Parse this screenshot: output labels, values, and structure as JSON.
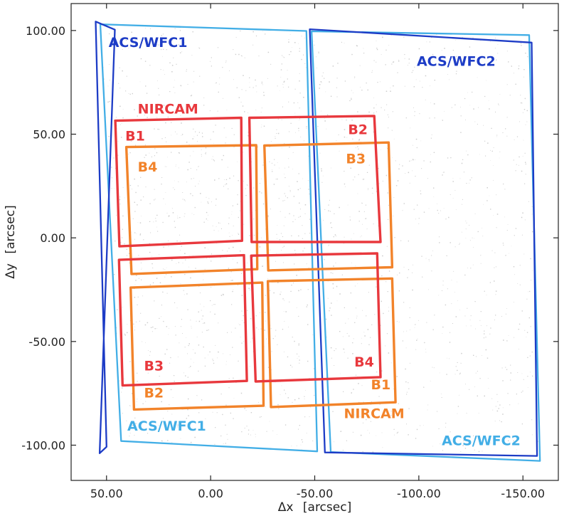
{
  "axes": {
    "xlabel_symbol": "Δx",
    "xlabel_unit": "[arcsec]",
    "ylabel_symbol": "Δy",
    "ylabel_unit": "[arcsec]",
    "xlim": [
      67,
      -167
    ],
    "ylim": [
      -117,
      113
    ],
    "x_ticks": [
      {
        "value": 50,
        "label": "50.00"
      },
      {
        "value": 0,
        "label": "0.00"
      },
      {
        "value": -50,
        "label": "-50.00"
      },
      {
        "value": -100,
        "label": "-100.00"
      },
      {
        "value": -150,
        "label": "-150.00"
      }
    ],
    "y_ticks": [
      {
        "value": 100,
        "label": "100.00"
      },
      {
        "value": 50,
        "label": "50.00"
      },
      {
        "value": 0,
        "label": "0.00"
      },
      {
        "value": -50,
        "label": "-50.00"
      },
      {
        "value": -100,
        "label": "-100.00"
      }
    ]
  },
  "colors": {
    "acs_dark": "#1d3cc6",
    "acs_light": "#42aee6",
    "nircam_red": "#e8383d",
    "nircam_orange": "#f2832a",
    "stars": "#c4c4c4",
    "axis": "#222222"
  },
  "footprints": [
    {
      "id": "acs-wfc1-dark",
      "group": "acs_dark",
      "corners": [
        [
          55.2,
          104.3
        ],
        [
          46.0,
          100.4
        ],
        [
          53.3,
          -103.9
        ],
        [
          50.0,
          -100.8
        ]
      ]
    },
    {
      "id": "acs-wfc2-dark",
      "group": "acs_dark",
      "corners": [
        [
          -47.6,
          100.6
        ],
        [
          -154.2,
          94.2
        ],
        [
          -156.8,
          -105.2
        ],
        [
          -54.9,
          -103.5
        ]
      ]
    },
    {
      "id": "acs-wfc1-light",
      "group": "acs_light",
      "corners": [
        [
          53.0,
          103.0
        ],
        [
          -46.0,
          99.8
        ],
        [
          -51.2,
          -103.0
        ],
        [
          43.0,
          -98.0
        ]
      ]
    },
    {
      "id": "acs-wfc2-light",
      "group": "acs_light",
      "corners": [
        [
          -48.5,
          99.6
        ],
        [
          -153.0,
          97.8
        ],
        [
          -158.2,
          -107.6
        ],
        [
          -57.7,
          -103.3
        ]
      ]
    },
    {
      "id": "nircam-a-b1",
      "group": "nircam_red",
      "corners": [
        [
          45.8,
          56.5
        ],
        [
          -14.7,
          57.9
        ],
        [
          -15.1,
          -1.4
        ],
        [
          43.8,
          -4.1
        ]
      ]
    },
    {
      "id": "nircam-a-b4",
      "group": "nircam_orange",
      "corners": [
        [
          40.5,
          43.8
        ],
        [
          -21.9,
          44.7
        ],
        [
          -22.4,
          -15.1
        ],
        [
          38.0,
          -17.4
        ]
      ]
    },
    {
      "id": "nircam-a-b3",
      "group": "nircam_red",
      "corners": [
        [
          44.0,
          -10.6
        ],
        [
          -16.0,
          -8.4
        ],
        [
          -17.4,
          -69.0
        ],
        [
          42.3,
          -71.2
        ]
      ]
    },
    {
      "id": "nircam-a-b2",
      "group": "nircam_orange",
      "corners": [
        [
          38.4,
          -24.0
        ],
        [
          -24.8,
          -21.6
        ],
        [
          -25.4,
          -81.0
        ],
        [
          36.8,
          -82.8
        ]
      ]
    },
    {
      "id": "nircam-b-b2",
      "group": "nircam_red",
      "corners": [
        [
          -18.6,
          57.9
        ],
        [
          -78.6,
          58.8
        ],
        [
          -81.6,
          -2.0
        ],
        [
          -19.7,
          -2.0
        ]
      ]
    },
    {
      "id": "nircam-b-b3",
      "group": "nircam_orange",
      "corners": [
        [
          -25.8,
          44.5
        ],
        [
          -85.5,
          46.0
        ],
        [
          -87.2,
          -14.2
        ],
        [
          -27.7,
          -15.7
        ]
      ]
    },
    {
      "id": "nircam-b-b4",
      "group": "nircam_red",
      "corners": [
        [
          -19.5,
          -8.6
        ],
        [
          -80.0,
          -7.5
        ],
        [
          -81.6,
          -67.2
        ],
        [
          -21.6,
          -69.3
        ]
      ]
    },
    {
      "id": "nircam-b-b1",
      "group": "nircam_orange",
      "corners": [
        [
          -27.5,
          -20.9
        ],
        [
          -87.2,
          -19.6
        ],
        [
          -88.8,
          -79.3
        ],
        [
          -29.0,
          -81.6
        ]
      ]
    }
  ],
  "labels": [
    {
      "id": "label-acs-wfc1-top",
      "text": "ACS/WFC1",
      "group": "acs_dark",
      "x": 49,
      "y": 92
    },
    {
      "id": "label-acs-wfc2-top",
      "text": "ACS/WFC2",
      "group": "acs_dark",
      "x": -99,
      "y": 83
    },
    {
      "id": "label-acs-wfc1-bottom",
      "text": "ACS/WFC1",
      "group": "acs_light",
      "x": 40,
      "y": -93
    },
    {
      "id": "label-acs-wfc2-bottom",
      "text": "ACS/WFC2",
      "group": "acs_light",
      "x": -111,
      "y": -100
    },
    {
      "id": "label-nircam-top",
      "text": "NIRCAM",
      "group": "nircam_red",
      "x": 35,
      "y": 60
    },
    {
      "id": "label-nircam-bottom",
      "text": "NIRCAM",
      "group": "nircam_orange",
      "x": -64,
      "y": -87
    },
    {
      "id": "label-a-b1",
      "text": "B1",
      "group": "nircam_red",
      "x": 41,
      "y": 47
    },
    {
      "id": "label-a-b4",
      "text": "B4",
      "group": "nircam_orange",
      "x": 35,
      "y": 32
    },
    {
      "id": "label-a-b3",
      "text": "B3",
      "group": "nircam_red",
      "x": 32,
      "y": -64
    },
    {
      "id": "label-a-b2",
      "text": "B2",
      "group": "nircam_orange",
      "x": 32,
      "y": -77
    },
    {
      "id": "label-b-b2",
      "text": "B2",
      "group": "nircam_red",
      "x": -66,
      "y": 50
    },
    {
      "id": "label-b-b3",
      "text": "B3",
      "group": "nircam_orange",
      "x": -65,
      "y": 36
    },
    {
      "id": "label-b-b4",
      "text": "B4",
      "group": "nircam_red",
      "x": -69,
      "y": -62
    },
    {
      "id": "label-b-b1",
      "text": "B1",
      "group": "nircam_orange",
      "x": -77,
      "y": -73
    }
  ]
}
